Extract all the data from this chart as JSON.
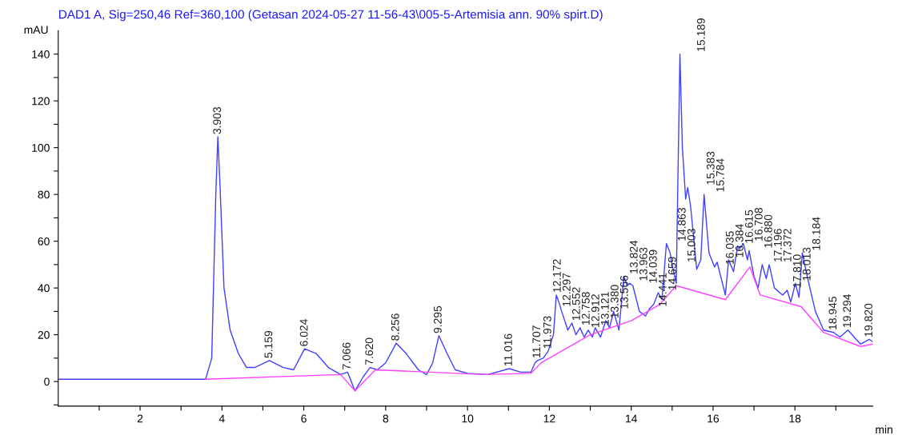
{
  "chart_data": {
    "type": "line",
    "title": "DAD1 A, Sig=250,46 Ref=360,100 (Getasan 2024-05-27 11-56-43\\005-5-Artemisia ann. 90% spirt.D)",
    "ylabel": "mAU",
    "xlabel": "min",
    "xlim": [
      0,
      19.9
    ],
    "ylim": [
      -10.5,
      150
    ],
    "xticks": [
      {
        "value": 1,
        "label": null
      },
      2,
      {
        "value": 3,
        "label": null
      },
      4,
      {
        "value": 5,
        "label": null
      },
      6,
      {
        "value": 7,
        "label": null
      },
      8,
      {
        "value": 9,
        "label": null
      },
      10,
      {
        "value": 11,
        "label": null
      },
      12,
      {
        "value": 13,
        "label": null
      },
      14,
      {
        "value": 15,
        "label": null
      },
      16,
      {
        "value": 17,
        "label": null
      },
      18,
      {
        "value": 19,
        "label": null
      }
    ],
    "yticks": [
      {
        "value": -10,
        "label": null
      },
      0,
      {
        "value": 10,
        "label": null
      },
      20,
      {
        "value": 30,
        "label": null
      },
      40,
      {
        "value": 50,
        "label": null
      },
      60,
      {
        "value": 70,
        "label": null
      },
      80,
      {
        "value": 90,
        "label": null
      },
      100,
      {
        "value": 110,
        "label": null
      },
      120,
      {
        "value": 130,
        "label": null
      },
      140
    ],
    "grid": false,
    "legend": false,
    "marker": "none",
    "line_style": "solid",
    "series": [
      {
        "color": "#4040ff",
        "x": [
          0,
          3.6,
          3.75,
          3.85,
          3.9,
          3.95,
          4.05,
          4.2,
          4.4,
          4.6,
          4.8,
          5.16,
          5.5,
          5.75,
          5.9,
          6.02,
          6.3,
          6.6,
          6.9,
          7.07,
          7.25,
          7.45,
          7.62,
          7.8,
          8.0,
          8.26,
          8.5,
          8.8,
          9.0,
          9.15,
          9.3,
          9.5,
          9.7,
          10.0,
          10.5,
          11.02,
          11.3,
          11.55,
          11.65,
          11.71,
          11.85,
          11.97,
          12.1,
          12.17,
          12.25,
          12.3,
          12.45,
          12.55,
          12.65,
          12.75,
          12.85,
          12.95,
          13.05,
          13.12,
          13.25,
          13.38,
          13.47,
          13.57,
          13.7,
          13.82,
          13.9,
          13.96,
          14.04,
          14.2,
          14.35,
          14.44,
          14.55,
          14.66,
          14.75,
          14.86,
          14.95,
          15.0,
          15.1,
          15.19,
          15.25,
          15.33,
          15.38,
          15.45,
          15.6,
          15.7,
          15.78,
          15.9,
          16.035,
          16.1,
          16.3,
          16.38,
          16.5,
          16.6,
          16.66,
          16.74,
          16.84,
          16.88,
          17.0,
          17.1,
          17.2,
          17.3,
          17.37,
          17.5,
          17.7,
          17.81,
          17.9,
          18.01,
          18.1,
          18.18,
          18.3,
          18.5,
          18.7,
          18.945,
          19.1,
          19.294,
          19.5,
          19.6,
          19.82,
          19.9
        ],
        "values": [
          1,
          1,
          10,
          80,
          104.7,
          85,
          40,
          22,
          12,
          6,
          6,
          9,
          6,
          5,
          10,
          14,
          12,
          6,
          3,
          4,
          -4,
          2,
          6,
          5,
          8,
          16.4,
          12,
          5,
          3,
          8,
          19.6,
          12,
          5,
          3.5,
          3,
          5.5,
          4,
          4,
          8,
          9,
          10,
          13,
          20,
          37,
          33,
          30,
          22,
          25,
          20,
          23,
          19,
          22,
          19,
          23,
          19,
          26,
          23,
          30,
          22,
          45,
          41,
          42,
          41,
          30,
          28,
          31,
          33,
          38,
          35,
          59,
          55,
          50,
          42,
          140,
          100,
          78,
          83,
          75,
          48,
          52,
          80,
          55,
          49,
          51,
          37,
          52,
          47,
          58,
          57,
          59,
          52,
          56,
          45,
          40,
          50,
          44,
          50,
          40,
          37,
          39,
          34,
          42,
          36,
          55,
          45,
          30,
          22,
          21,
          19,
          22,
          18,
          16,
          18,
          17
        ]
      },
      {
        "color": "#ff40ff",
        "x": [
          3.6,
          6.9,
          7.25,
          7.75,
          10.4,
          11.55,
          11.8,
          13.0,
          14.0,
          14.7,
          15.1,
          16.3,
          16.9,
          17.15,
          18.15,
          18.7,
          19.6,
          19.9
        ],
        "values": [
          1,
          3,
          -4,
          5,
          3,
          3.5,
          8,
          20,
          26,
          33,
          41,
          35,
          49,
          37,
          32,
          21,
          15,
          16
        ]
      }
    ],
    "annotations": [
      {
        "text": "3.903",
        "x": 3.903,
        "y": 104.7
      },
      {
        "text": "5.159",
        "x": 5.159,
        "y": 9
      },
      {
        "text": "6.024",
        "x": 6.024,
        "y": 14
      },
      {
        "text": "7.066",
        "x": 7.066,
        "y": 4
      },
      {
        "text": "7.620",
        "x": 7.62,
        "y": 6
      },
      {
        "text": "8.256",
        "x": 8.256,
        "y": 16.4
      },
      {
        "text": "9.295",
        "x": 9.295,
        "y": 19.6
      },
      {
        "text": "11.016",
        "x": 11.016,
        "y": 5.5
      },
      {
        "text": "11.707",
        "x": 11.707,
        "y": 9
      },
      {
        "text": "11.973",
        "x": 11.973,
        "y": 13
      },
      {
        "text": "12.172",
        "x": 12.172,
        "y": 37
      },
      {
        "text": "12.297",
        "x": 12.297,
        "y": 31
      },
      {
        "text": "12.552",
        "x": 12.552,
        "y": 25
      },
      {
        "text": "12.758",
        "x": 12.758,
        "y": 23
      },
      {
        "text": "12.912",
        "x": 12.912,
        "y": 22
      },
      {
        "text": "13.121",
        "x": 13.121,
        "y": 23
      },
      {
        "text": "13.380",
        "x": 13.38,
        "y": 26
      },
      {
        "text": "13.566",
        "x": 13.566,
        "y": 30
      },
      {
        "text": "13.824",
        "x": 13.824,
        "y": 45
      },
      {
        "text": "13.963",
        "x": 13.963,
        "y": 42
      },
      {
        "text": "14.039",
        "x": 14.039,
        "y": 41
      },
      {
        "text": "14.441",
        "x": 14.441,
        "y": 31
      },
      {
        "text": "14.659",
        "x": 14.659,
        "y": 38
      },
      {
        "text": "14.863",
        "x": 14.863,
        "y": 59
      },
      {
        "text": "15.003",
        "x": 15.003,
        "y": 50
      },
      {
        "text": "15.189",
        "x": 15.189,
        "y": 140
      },
      {
        "text": "15.383",
        "x": 15.383,
        "y": 83
      },
      {
        "text": "15.784",
        "x": 15.784,
        "y": 80
      },
      {
        "text": "16.035",
        "x": 16.035,
        "y": 49
      },
      {
        "text": "16.384",
        "x": 16.384,
        "y": 52
      },
      {
        "text": "16.615",
        "x": 16.615,
        "y": 58
      },
      {
        "text": "16.708",
        "x": 16.708,
        "y": 59
      },
      {
        "text": "16.880",
        "x": 16.88,
        "y": 56
      },
      {
        "text": "17.196",
        "x": 17.196,
        "y": 50
      },
      {
        "text": "17.372",
        "x": 17.372,
        "y": 50
      },
      {
        "text": "17.810",
        "x": 17.81,
        "y": 39
      },
      {
        "text": "18.013",
        "x": 18.013,
        "y": 42
      },
      {
        "text": "18.184",
        "x": 18.184,
        "y": 55
      },
      {
        "text": "18.945",
        "x": 18.945,
        "y": 21
      },
      {
        "text": "19.294",
        "x": 19.294,
        "y": 22
      },
      {
        "text": "19.820",
        "x": 19.82,
        "y": 18
      }
    ]
  }
}
